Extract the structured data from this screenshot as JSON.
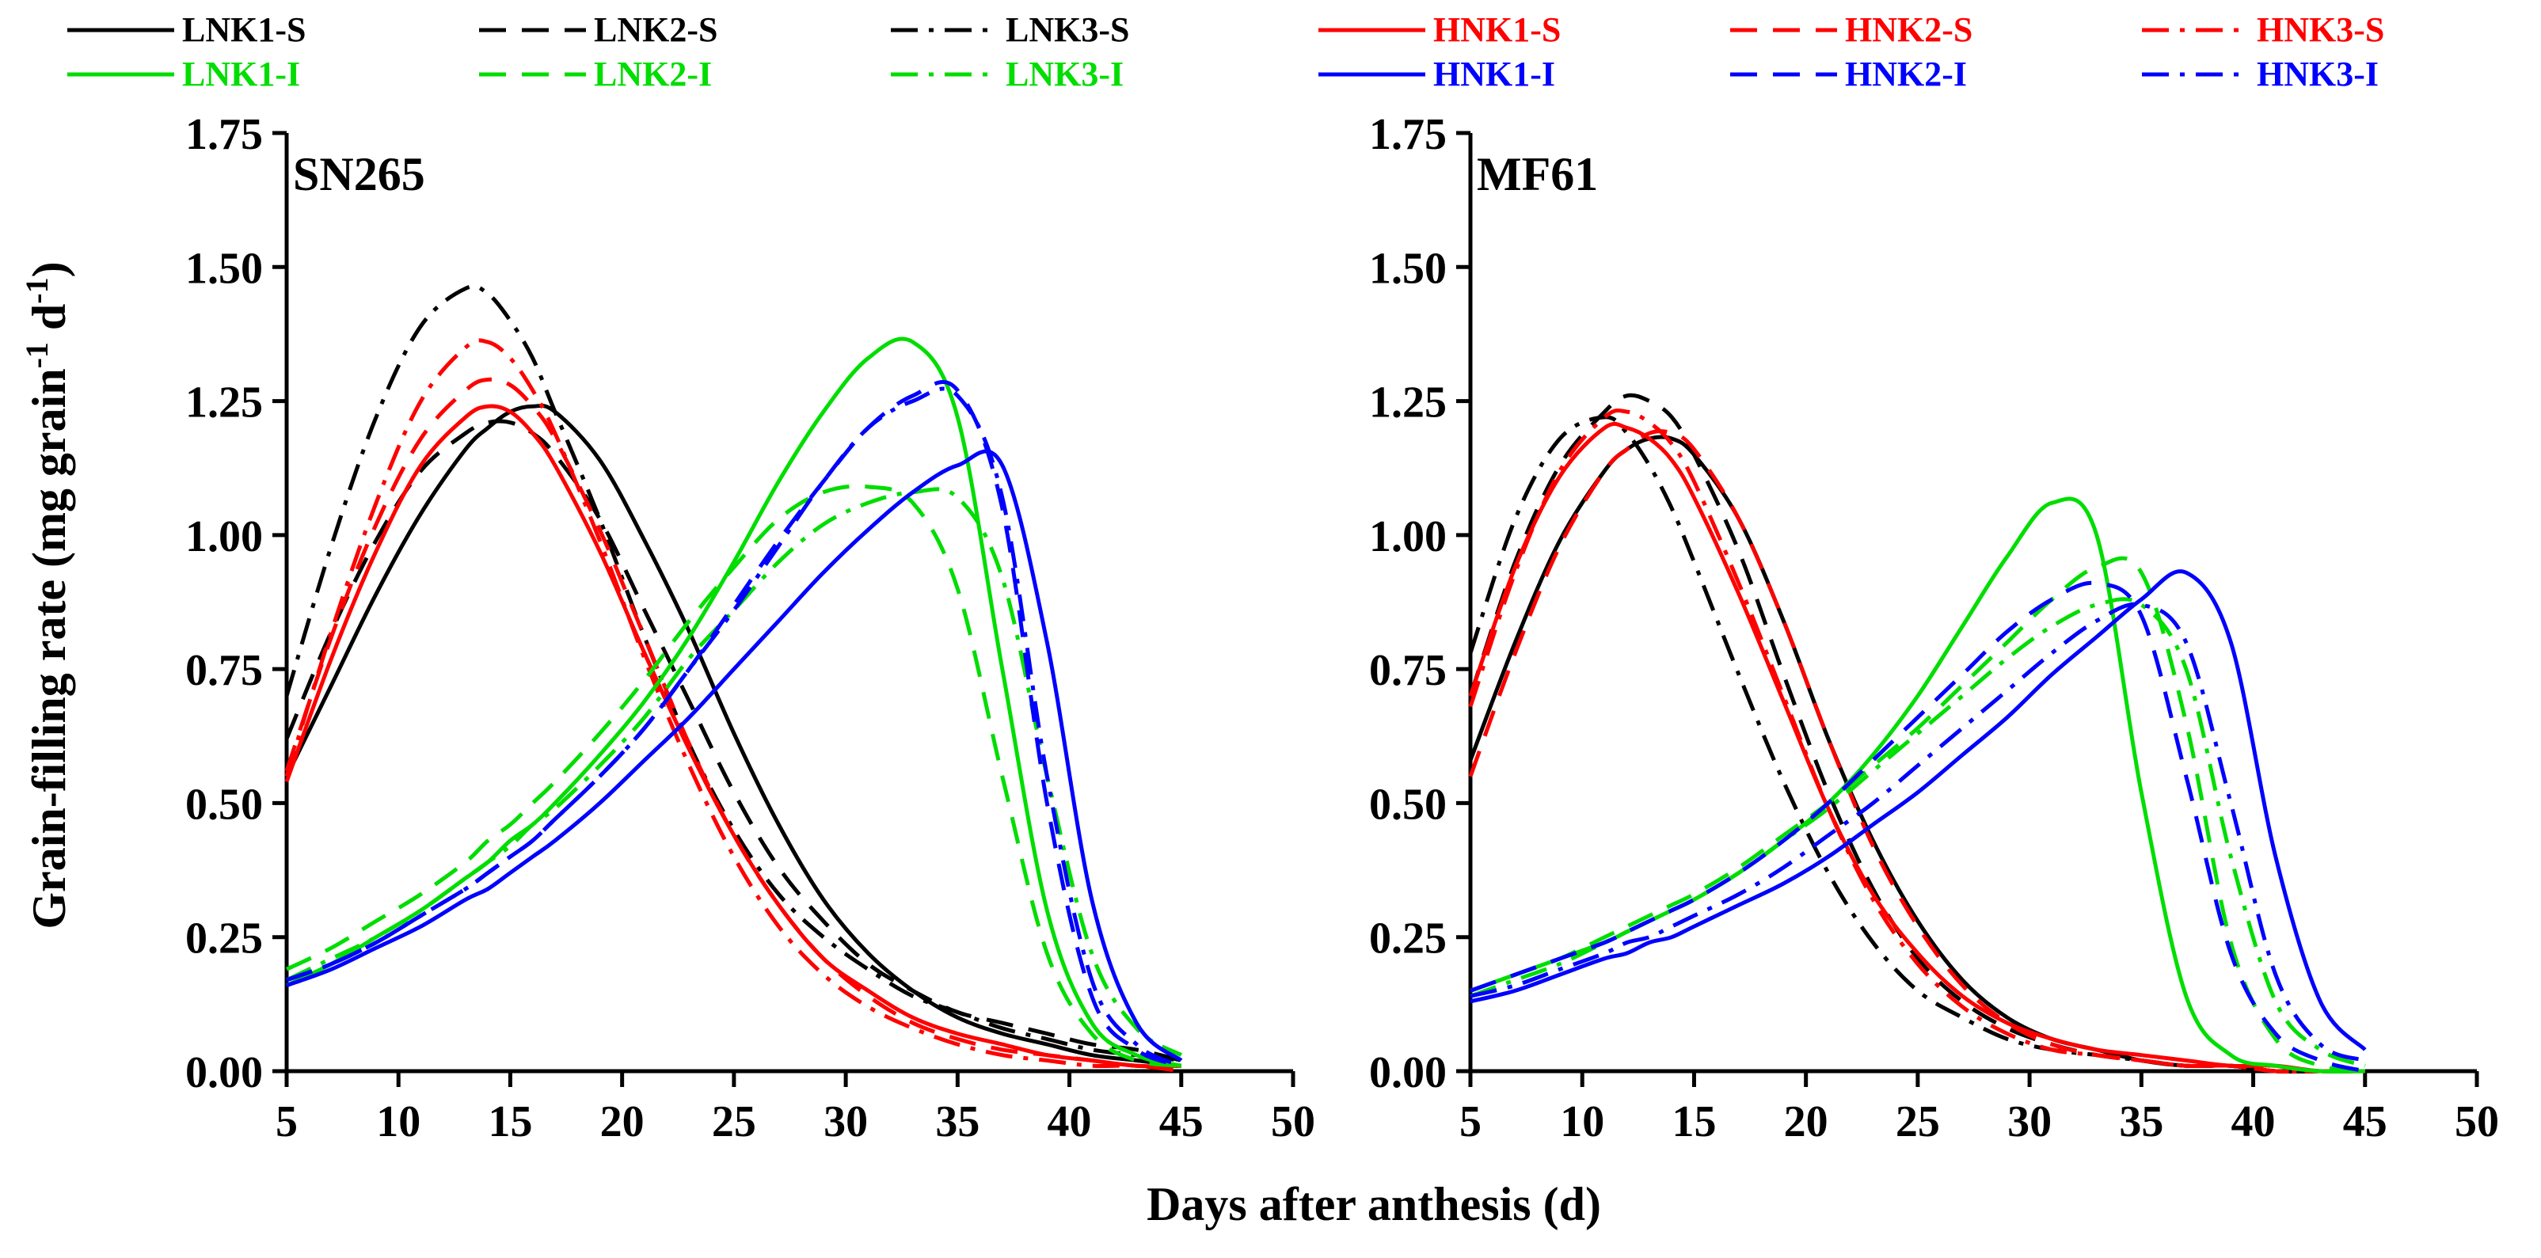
{
  "y_axis_label_main": "Grain-filling rate (mg grain",
  "y_axis_label_sup1": "-1",
  "y_axis_label_mid": " d",
  "y_axis_label_sup2": "-1",
  "y_axis_label_end": ")",
  "x_axis_label": "Days after anthesis (d)",
  "legend": [
    {
      "name": "LNK1-S",
      "color": "#000000",
      "dash": "solid"
    },
    {
      "name": "LNK2-S",
      "color": "#000000",
      "dash": "dashed"
    },
    {
      "name": "LNK3-S",
      "color": "#000000",
      "dashdot": true,
      "dash": "dashdot"
    },
    {
      "name": "HNK1-S",
      "color": "#ff0000",
      "dash": "solid"
    },
    {
      "name": "HNK2-S",
      "color": "#ff0000",
      "dash": "dashed"
    },
    {
      "name": "HNK3-S",
      "color": "#ff0000",
      "dash": "dashdot"
    },
    {
      "name": "LNK1-I",
      "color": "#00dd00",
      "dash": "solid"
    },
    {
      "name": "LNK2-I",
      "color": "#00dd00",
      "dash": "dashed"
    },
    {
      "name": "LNK3-I",
      "color": "#00dd00",
      "dash": "dashdot"
    },
    {
      "name": "HNK1-I",
      "color": "#0000ff",
      "dash": "solid"
    },
    {
      "name": "HNK2-I",
      "color": "#0000ff",
      "dash": "dashed"
    },
    {
      "name": "HNK3-I",
      "color": "#0000ff",
      "dash": "dashdot"
    }
  ],
  "chart_data": [
    {
      "type": "line",
      "title": "SN265",
      "xlabel": "Days after anthesis (d)",
      "ylabel": "Grain-filling rate (mg grain-1 d-1)",
      "xlim": [
        5,
        50
      ],
      "ylim": [
        0,
        1.75
      ],
      "xticks": [
        "5",
        "10",
        "15",
        "20",
        "25",
        "30",
        "35",
        "40",
        "45",
        "50"
      ],
      "yticks": [
        "0.00",
        "0.25",
        "0.50",
        "0.75",
        "1.00",
        "1.25",
        "1.50",
        "1.75"
      ],
      "x": [
        5,
        7,
        9,
        11,
        13,
        14,
        15,
        16,
        17,
        19,
        21,
        23,
        25,
        27,
        29,
        31,
        33,
        35,
        37,
        39,
        41,
        43,
        45
      ],
      "series": [
        {
          "name": "LNK1-S",
          "values": [
            0.55,
            0.72,
            0.89,
            1.04,
            1.16,
            1.2,
            1.23,
            1.24,
            1.23,
            1.14,
            0.99,
            0.82,
            0.63,
            0.46,
            0.32,
            0.22,
            0.15,
            0.1,
            0.07,
            0.05,
            0.03,
            0.02,
            0.01
          ]
        },
        {
          "name": "LNK2-S",
          "values": [
            0.62,
            0.82,
            0.99,
            1.12,
            1.19,
            1.21,
            1.21,
            1.19,
            1.15,
            1.03,
            0.86,
            0.69,
            0.52,
            0.38,
            0.28,
            0.2,
            0.15,
            0.11,
            0.09,
            0.07,
            0.05,
            0.04,
            0.02
          ]
        },
        {
          "name": "LNK3-S",
          "values": [
            0.7,
            0.98,
            1.22,
            1.39,
            1.46,
            1.45,
            1.4,
            1.33,
            1.23,
            1.03,
            0.81,
            0.61,
            0.45,
            0.33,
            0.25,
            0.19,
            0.14,
            0.11,
            0.08,
            0.06,
            0.04,
            0.03,
            0.02
          ]
        },
        {
          "name": "HNK1-S",
          "values": [
            0.54,
            0.77,
            0.97,
            1.13,
            1.22,
            1.24,
            1.23,
            1.19,
            1.13,
            0.97,
            0.78,
            0.6,
            0.44,
            0.31,
            0.21,
            0.15,
            0.1,
            0.07,
            0.05,
            0.03,
            0.02,
            0.01,
            0.01
          ]
        },
        {
          "name": "HNK2-S",
          "values": [
            0.56,
            0.81,
            1.02,
            1.18,
            1.27,
            1.29,
            1.28,
            1.24,
            1.18,
            1.01,
            0.81,
            0.61,
            0.44,
            0.31,
            0.21,
            0.14,
            0.09,
            0.06,
            0.04,
            0.03,
            0.02,
            0.01,
            0.01
          ]
        },
        {
          "name": "HNK3-S",
          "values": [
            0.55,
            0.82,
            1.06,
            1.25,
            1.35,
            1.36,
            1.33,
            1.27,
            1.19,
            0.99,
            0.77,
            0.57,
            0.4,
            0.27,
            0.18,
            0.12,
            0.08,
            0.05,
            0.03,
            0.02,
            0.01,
            0.01,
            0.0
          ]
        },
        {
          "name": "LNK1-I",
          "values": [
            0.16,
            0.2,
            0.25,
            0.3,
            0.36,
            0.39,
            0.43,
            0.46,
            0.5,
            0.59,
            0.69,
            0.81,
            0.95,
            1.1,
            1.23,
            1.33,
            1.36,
            1.22,
            0.75,
            0.3,
            0.09,
            0.03,
            0.01
          ]
        },
        {
          "name": "LNK2-I",
          "values": [
            0.19,
            0.23,
            0.28,
            0.33,
            0.39,
            0.43,
            0.46,
            0.5,
            0.54,
            0.63,
            0.73,
            0.84,
            0.94,
            1.03,
            1.08,
            1.09,
            1.06,
            0.9,
            0.55,
            0.22,
            0.07,
            0.02,
            0.01
          ]
        },
        {
          "name": "LNK3-I",
          "values": [
            0.17,
            0.21,
            0.25,
            0.3,
            0.36,
            0.39,
            0.42,
            0.46,
            0.49,
            0.57,
            0.66,
            0.77,
            0.86,
            0.95,
            1.02,
            1.06,
            1.08,
            1.07,
            0.92,
            0.55,
            0.22,
            0.08,
            0.03
          ]
        },
        {
          "name": "HNK1-I",
          "values": [
            0.16,
            0.19,
            0.23,
            0.27,
            0.32,
            0.34,
            0.37,
            0.4,
            0.43,
            0.5,
            0.58,
            0.66,
            0.75,
            0.84,
            0.93,
            1.01,
            1.08,
            1.13,
            1.13,
            0.8,
            0.32,
            0.09,
            0.02
          ]
        },
        {
          "name": "HNK2-I",
          "values": [
            0.17,
            0.2,
            0.24,
            0.29,
            0.34,
            0.37,
            0.4,
            0.43,
            0.47,
            0.55,
            0.64,
            0.75,
            0.87,
            0.99,
            1.1,
            1.2,
            1.26,
            1.27,
            1.05,
            0.5,
            0.14,
            0.04,
            0.01
          ]
        },
        {
          "name": "HNK3-I",
          "values": [
            0.17,
            0.2,
            0.24,
            0.29,
            0.34,
            0.37,
            0.4,
            0.43,
            0.47,
            0.55,
            0.64,
            0.75,
            0.86,
            0.98,
            1.1,
            1.2,
            1.25,
            1.26,
            1.07,
            0.55,
            0.17,
            0.05,
            0.01
          ]
        }
      ]
    },
    {
      "type": "line",
      "title": "MF61",
      "xlabel": "Days after anthesis (d)",
      "ylabel": "Grain-filling rate (mg grain-1 d-1)",
      "xlim": [
        5,
        50
      ],
      "ylim": [
        0,
        1.75
      ],
      "xticks": [
        "5",
        "10",
        "15",
        "20",
        "25",
        "30",
        "35",
        "40",
        "45",
        "50"
      ],
      "yticks": [
        "0.00",
        "0.25",
        "0.50",
        "0.75",
        "1.00",
        "1.25",
        "1.50",
        "1.75"
      ],
      "x": [
        5,
        7,
        9,
        11,
        12,
        13,
        14,
        15,
        17,
        19,
        21,
        23,
        25,
        27,
        29,
        31,
        33,
        35,
        37,
        39,
        41,
        43,
        45
      ],
      "series": [
        {
          "name": "LNK1-S",
          "values": [
            0.58,
            0.8,
            0.99,
            1.12,
            1.16,
            1.18,
            1.18,
            1.15,
            1.03,
            0.84,
            0.62,
            0.43,
            0.28,
            0.17,
            0.1,
            0.06,
            0.04,
            0.02,
            0.01,
            0.01,
            0.0,
            0.0,
            0.0
          ]
        },
        {
          "name": "LNK2-S",
          "values": [
            0.7,
            0.95,
            1.13,
            1.23,
            1.26,
            1.25,
            1.22,
            1.15,
            0.97,
            0.74,
            0.52,
            0.34,
            0.21,
            0.13,
            0.08,
            0.05,
            0.03,
            0.02,
            0.01,
            0.01,
            0.0,
            0.0,
            0.0
          ]
        },
        {
          "name": "LNK3-S",
          "values": [
            0.78,
            1.03,
            1.18,
            1.22,
            1.19,
            1.13,
            1.05,
            0.95,
            0.74,
            0.54,
            0.37,
            0.24,
            0.15,
            0.1,
            0.06,
            0.04,
            0.03,
            0.02,
            0.01,
            0.01,
            0.0,
            0.0,
            0.0
          ]
        },
        {
          "name": "HNK1-S",
          "values": [
            0.7,
            0.94,
            1.11,
            1.2,
            1.2,
            1.18,
            1.14,
            1.07,
            0.89,
            0.69,
            0.49,
            0.33,
            0.22,
            0.14,
            0.09,
            0.06,
            0.04,
            0.03,
            0.02,
            0.01,
            0.01,
            0.0,
            0.0
          ]
        },
        {
          "name": "HNK2-S",
          "values": [
            0.55,
            0.78,
            0.98,
            1.12,
            1.16,
            1.19,
            1.19,
            1.16,
            1.03,
            0.84,
            0.62,
            0.42,
            0.27,
            0.16,
            0.09,
            0.05,
            0.03,
            0.02,
            0.01,
            0.01,
            0.0,
            0.0,
            0.0
          ]
        },
        {
          "name": "HNK3-S",
          "values": [
            0.68,
            0.93,
            1.12,
            1.22,
            1.23,
            1.21,
            1.17,
            1.1,
            0.91,
            0.7,
            0.49,
            0.32,
            0.2,
            0.12,
            0.07,
            0.04,
            0.03,
            0.02,
            0.01,
            0.01,
            0.0,
            0.0,
            0.0
          ]
        },
        {
          "name": "LNK1-I",
          "values": [
            0.15,
            0.18,
            0.21,
            0.24,
            0.26,
            0.28,
            0.3,
            0.32,
            0.37,
            0.43,
            0.5,
            0.59,
            0.7,
            0.83,
            0.96,
            1.06,
            1.0,
            0.52,
            0.14,
            0.03,
            0.01,
            0.0,
            0.0
          ]
        },
        {
          "name": "LNK2-I",
          "values": [
            0.15,
            0.18,
            0.21,
            0.25,
            0.27,
            0.29,
            0.31,
            0.33,
            0.38,
            0.44,
            0.5,
            0.57,
            0.64,
            0.72,
            0.8,
            0.88,
            0.94,
            0.93,
            0.65,
            0.24,
            0.06,
            0.01,
            0.0
          ]
        },
        {
          "name": "LNK3-I",
          "values": [
            0.14,
            0.17,
            0.2,
            0.24,
            0.26,
            0.28,
            0.3,
            0.32,
            0.37,
            0.43,
            0.49,
            0.56,
            0.63,
            0.7,
            0.77,
            0.83,
            0.87,
            0.87,
            0.75,
            0.4,
            0.13,
            0.04,
            0.01
          ]
        },
        {
          "name": "HNK1-I",
          "values": [
            0.13,
            0.15,
            0.18,
            0.21,
            0.22,
            0.24,
            0.25,
            0.27,
            0.31,
            0.35,
            0.4,
            0.46,
            0.52,
            0.59,
            0.66,
            0.74,
            0.81,
            0.88,
            0.93,
            0.8,
            0.4,
            0.13,
            0.04
          ]
        },
        {
          "name": "HNK2-I",
          "values": [
            0.15,
            0.18,
            0.21,
            0.24,
            0.26,
            0.28,
            0.3,
            0.32,
            0.37,
            0.43,
            0.5,
            0.58,
            0.66,
            0.74,
            0.82,
            0.88,
            0.91,
            0.85,
            0.55,
            0.22,
            0.07,
            0.02,
            0.0
          ]
        },
        {
          "name": "HNK3-I",
          "values": [
            0.14,
            0.16,
            0.19,
            0.22,
            0.24,
            0.25,
            0.27,
            0.29,
            0.33,
            0.38,
            0.44,
            0.5,
            0.57,
            0.64,
            0.71,
            0.78,
            0.84,
            0.87,
            0.8,
            0.5,
            0.18,
            0.05,
            0.02
          ]
        }
      ]
    }
  ]
}
